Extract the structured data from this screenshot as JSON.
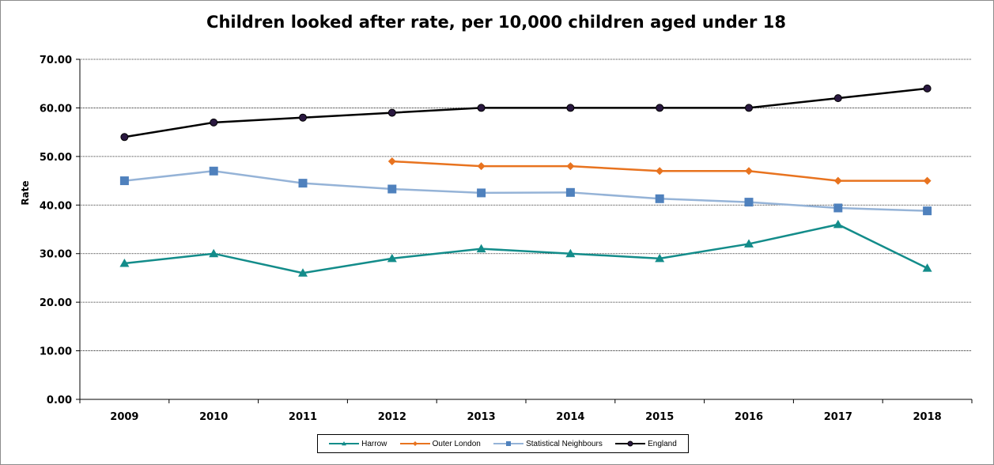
{
  "chart_data": {
    "type": "line",
    "title": "Children looked after rate, per 10,000 children aged under 18",
    "xlabel": "",
    "ylabel": "Rate",
    "ylim": [
      0,
      70
    ],
    "yticks": [
      "0.00",
      "10.00",
      "20.00",
      "30.00",
      "40.00",
      "50.00",
      "60.00",
      "70.00"
    ],
    "categories": [
      "2009",
      "2010",
      "2011",
      "2012",
      "2013",
      "2014",
      "2015",
      "2016",
      "2017",
      "2018"
    ],
    "grid": true,
    "legend_position": "bottom",
    "series": [
      {
        "name": "Harrow",
        "color": "#138c8a",
        "marker": "triangle",
        "values": [
          28,
          30,
          26,
          29,
          31,
          30,
          29,
          32,
          36,
          27
        ]
      },
      {
        "name": "Outer London",
        "color": "#e8731f",
        "marker": "diamond",
        "values": [
          null,
          null,
          null,
          49,
          48,
          48,
          47,
          47,
          45,
          45
        ]
      },
      {
        "name": "Statistical Neighbours",
        "color": "#95b3d7",
        "marker": "square",
        "marker_color": "#4f81bd",
        "values": [
          45,
          47,
          44.5,
          43.3,
          42.5,
          42.6,
          41.3,
          40.6,
          39.4,
          38.8
        ]
      },
      {
        "name": "England",
        "color": "#000000",
        "marker": "circle",
        "marker_color": "#2a1840",
        "values": [
          54,
          57,
          58,
          59,
          60,
          60,
          60,
          60,
          62,
          64
        ]
      }
    ]
  }
}
